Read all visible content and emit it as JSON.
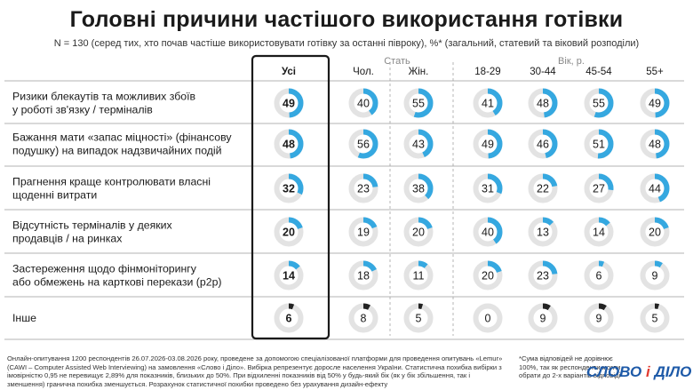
{
  "title": "Головні причини частішого використання готівки",
  "subtitle": "N = 130 (серед тих, хто почав частіше використовувати готівку за останні півроку), %* (загальний, статевий та віковий розподіли)",
  "colors": {
    "accent": "#35a8e0",
    "track": "#e3e3e3",
    "inshe": "#222222",
    "frame": "#1a1a1a"
  },
  "chart_data": {
    "type": "donut-table",
    "group_labels": {
      "sex": "Стать",
      "age": "Вік, р."
    },
    "columns": [
      "Усі",
      "Чол.",
      "Жін.",
      "18-29",
      "30-44",
      "45-54",
      "55+"
    ],
    "rows": [
      {
        "label": "Ризики блекаутів та можливих збоїв у роботі зв'язку / терміналів",
        "lines": [
          "Ризики блекаутів та можливих збоїв",
          "у роботі зв'язку / терміналів"
        ],
        "values": [
          49,
          40,
          55,
          41,
          48,
          55,
          49
        ]
      },
      {
        "label": "Бажання мати «запас міцності» (фінансову подушку) на випадок надзвичайних подій",
        "lines": [
          "Бажання мати «запас міцності» (фінансову",
          "подушку) на випадок надзвичайних подій"
        ],
        "values": [
          48,
          56,
          43,
          49,
          46,
          51,
          48
        ]
      },
      {
        "label": "Прагнення краще контролювати власні щоденні витрати",
        "lines": [
          "Прагнення краще контролювати власні",
          "щоденні витрати"
        ],
        "values": [
          32,
          23,
          38,
          31,
          22,
          27,
          44
        ]
      },
      {
        "label": "Відсутність терміналів у деяких продавців / на ринках",
        "lines": [
          "Відсутність терміналів у деяких",
          "продавців / на ринках"
        ],
        "values": [
          20,
          19,
          20,
          40,
          13,
          14,
          20
        ]
      },
      {
        "label": "Застереження щодо фінмоніторингу або обмежень на карткові перекази (р2р)",
        "lines": [
          "Застереження щодо фінмоніторингу",
          "або обмежень на карткові перекази (р2р)"
        ],
        "values": [
          14,
          18,
          11,
          20,
          23,
          6,
          9
        ]
      },
      {
        "label": "Інше",
        "lines": [
          "Інше"
        ],
        "values": [
          6,
          8,
          5,
          0,
          9,
          9,
          5
        ]
      }
    ]
  },
  "footnote": "Онлайн-опитування 1200 респондентів 26.07.2026-03.08.2026 року, проведене за допомогою спеціалізованої платформи для проведення опитувань «Lemur» (CAWI – Computer Assisted Web Interviewing) на замовлення «Слово і Діло». Вибірка репрезентує доросле населення України. Статистична похибка вибірки з імовірністю 0,95 не перевищує 2,89% для показників, близьких до 50%. При відхиленні показників від 50% у будь-який бік (як у бік збільшення, так і зменшення) гранична похибка зменшується. Розрахунок статистичної похибки проведено без урахування дизайн-ефекту",
  "footnote_side": "*Сума відповідей не дорівнює 100%, так як респонденти могли обрати до 2-х варіантів відповіді",
  "logo": {
    "part1": "СЛОВО",
    "amp": "і",
    "part2": "ДІЛО"
  }
}
